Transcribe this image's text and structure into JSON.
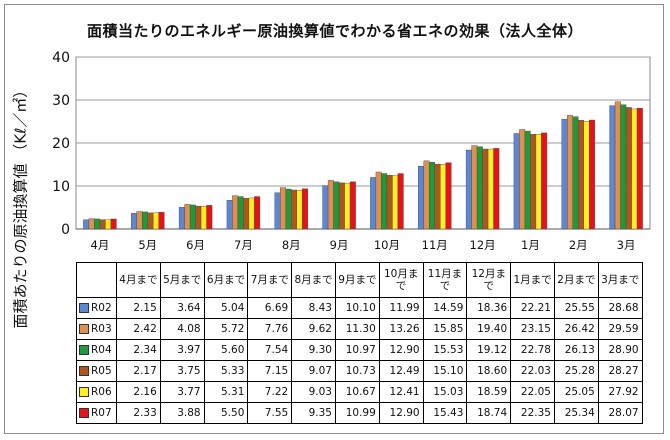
{
  "title": "面積当たりのエネルギー原油換算値でわかる省エネの効果（法人全体）",
  "chart_data": {
    "type": "bar",
    "title": "面積当たりのエネルギー原油換算値でわかる省エネの効果（法人全体）",
    "ylabel": "面積あたりの原油換算値 （Kℓ／㎡）",
    "xlabel": "",
    "ylim": [
      0,
      40
    ],
    "yticks": [
      0,
      10,
      20,
      30,
      40
    ],
    "grid": true,
    "categories": [
      "4月",
      "5月",
      "6月",
      "7月",
      "8月",
      "9月",
      "10月",
      "11月",
      "12月",
      "1月",
      "2月",
      "3月"
    ],
    "series": [
      {
        "name": "R02",
        "color": "#5b87d6",
        "values": [
          2.15,
          3.64,
          5.04,
          6.69,
          8.43,
          10.1,
          11.99,
          14.59,
          18.36,
          22.21,
          25.55,
          28.68
        ]
      },
      {
        "name": "R03",
        "color": "#e0904e",
        "values": [
          2.42,
          4.08,
          5.72,
          7.76,
          9.62,
          11.3,
          13.26,
          15.85,
          19.4,
          23.15,
          26.42,
          29.59
        ]
      },
      {
        "name": "R04",
        "color": "#1f9a3a",
        "values": [
          2.34,
          3.97,
          5.6,
          7.54,
          9.3,
          10.97,
          12.9,
          15.53,
          19.12,
          22.78,
          26.13,
          28.9
        ]
      },
      {
        "name": "R05",
        "color": "#b0561c",
        "values": [
          2.17,
          3.75,
          5.33,
          7.15,
          9.07,
          10.73,
          12.49,
          15.1,
          18.6,
          22.03,
          25.28,
          28.27
        ]
      },
      {
        "name": "R06",
        "color": "#ffee22",
        "values": [
          2.16,
          3.77,
          5.31,
          7.22,
          9.03,
          10.67,
          12.41,
          15.03,
          18.59,
          22.05,
          25.05,
          27.92
        ]
      },
      {
        "name": "R07",
        "color": "#e8121a",
        "values": [
          2.33,
          3.88,
          5.5,
          7.55,
          9.35,
          10.99,
          12.9,
          15.43,
          18.74,
          22.35,
          25.34,
          28.07
        ]
      }
    ]
  },
  "table": {
    "headers": [
      "4月まで",
      "5月まで",
      "6月まで",
      "7月まで",
      "8月まで",
      "9月まで",
      "10月まで",
      "11月まで",
      "12月まで",
      "1月まで",
      "2月まで",
      "3月まで"
    ],
    "rows": [
      {
        "label": "R02",
        "color": "#5b87d6",
        "values": [
          "2.15",
          "3.64",
          "5.04",
          "6.69",
          "8.43",
          "10.10",
          "11.99",
          "14.59",
          "18.36",
          "22.21",
          "25.55",
          "28.68"
        ]
      },
      {
        "label": "R03",
        "color": "#e0904e",
        "values": [
          "2.42",
          "4.08",
          "5.72",
          "7.76",
          "9.62",
          "11.30",
          "13.26",
          "15.85",
          "19.40",
          "23.15",
          "26.42",
          "29.59"
        ]
      },
      {
        "label": "R04",
        "color": "#1f9a3a",
        "values": [
          "2.34",
          "3.97",
          "5.60",
          "7.54",
          "9.30",
          "10.97",
          "12.90",
          "15.53",
          "19.12",
          "22.78",
          "26.13",
          "28.90"
        ]
      },
      {
        "label": "R05",
        "color": "#b0561c",
        "values": [
          "2.17",
          "3.75",
          "5.33",
          "7.15",
          "9.07",
          "10.73",
          "12.49",
          "15.10",
          "18.60",
          "22.03",
          "25.28",
          "28.27"
        ]
      },
      {
        "label": "R06",
        "color": "#ffee22",
        "values": [
          "2.16",
          "3.77",
          "5.31",
          "7.22",
          "9.03",
          "10.67",
          "12.41",
          "15.03",
          "18.59",
          "22.05",
          "25.05",
          "27.92"
        ]
      },
      {
        "label": "R07",
        "color": "#e8121a",
        "values": [
          "2.33",
          "3.88",
          "5.50",
          "7.55",
          "9.35",
          "10.99",
          "12.90",
          "15.43",
          "18.74",
          "22.35",
          "25.34",
          "28.07"
        ]
      }
    ]
  }
}
